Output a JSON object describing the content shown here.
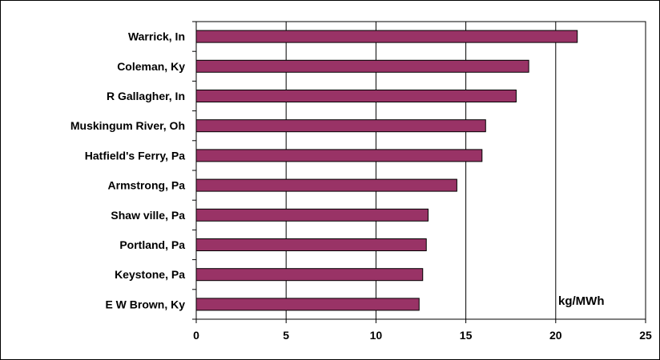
{
  "chart_data": {
    "type": "bar",
    "orientation": "horizontal",
    "categories": [
      "Warrick, In",
      "Coleman, Ky",
      "R Gallagher, In",
      "Muskingum River, Oh",
      "Hatfield's Ferry, Pa",
      "Armstrong, Pa",
      "Shaw ville, Pa",
      "Portland, Pa",
      "Keystone, Pa",
      "E W Brown, Ky"
    ],
    "values": [
      21.2,
      18.5,
      17.8,
      16.1,
      15.9,
      14.5,
      12.9,
      12.8,
      12.6,
      12.4
    ],
    "xlim": [
      0,
      25
    ],
    "x_ticks": [
      "0",
      "5",
      "10",
      "15",
      "20",
      "25"
    ],
    "unit_label": "kg/MWh",
    "grid": "vertical major gridlines",
    "bar_color": "#993366",
    "title": "",
    "xlabel": "",
    "ylabel": ""
  }
}
